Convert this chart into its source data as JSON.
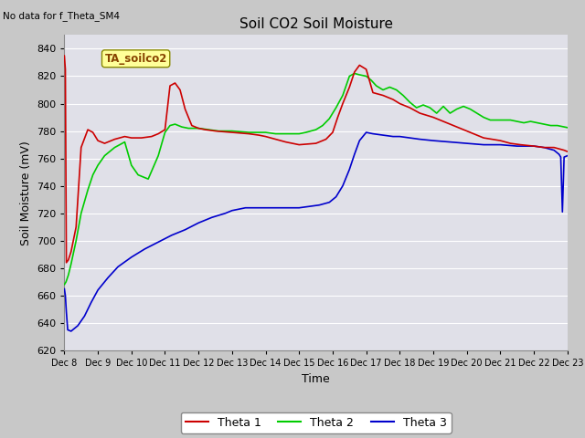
{
  "title": "Soil CO2 Soil Moisture",
  "xlabel": "Time",
  "ylabel": "Soil Moisture (mV)",
  "top_left_text": "No data for f_Theta_SM4",
  "annotation_box": "TA_soilco2",
  "ylim": [
    620,
    850
  ],
  "yticks": [
    620,
    640,
    660,
    680,
    700,
    720,
    740,
    760,
    780,
    800,
    820,
    840
  ],
  "x_labels": [
    "Dec 8",
    "Dec 9",
    "Dec 10",
    "Dec 11",
    "Dec 12",
    "Dec 13",
    "Dec 14",
    "Dec 15",
    "Dec 16",
    "Dec 17",
    "Dec 18",
    "Dec 19",
    "Dec 20",
    "Dec 21",
    "Dec 22",
    "Dec 23"
  ],
  "fig_bg_color": "#c8c8c8",
  "plot_bg_color": "#e0e0e8",
  "grid_color": "#ffffff",
  "theta1_color": "#cc0000",
  "theta2_color": "#00cc00",
  "theta3_color": "#0000cc",
  "legend_labels": [
    "Theta 1",
    "Theta 2",
    "Theta 3"
  ],
  "theta1_x": [
    0.0,
    0.03,
    0.06,
    0.12,
    0.2,
    0.35,
    0.5,
    0.7,
    0.85,
    1.0,
    1.2,
    1.5,
    1.8,
    2.0,
    2.3,
    2.6,
    2.8,
    3.0,
    3.15,
    3.3,
    3.45,
    3.6,
    3.8,
    4.0,
    4.2,
    4.5,
    5.0,
    5.5,
    5.8,
    6.0,
    6.3,
    6.6,
    7.0,
    7.5,
    7.8,
    8.0,
    8.15,
    8.3,
    8.5,
    8.65,
    8.8,
    9.0,
    9.2,
    9.5,
    9.8,
    10.0,
    10.3,
    10.6,
    11.0,
    11.5,
    12.0,
    12.5,
    13.0,
    13.3,
    13.6,
    14.0,
    14.3,
    14.6,
    14.9,
    15.0,
    15.2,
    15.4,
    15.6
  ],
  "theta1_y": [
    835,
    825,
    684,
    686,
    692,
    710,
    768,
    781,
    779,
    773,
    771,
    774,
    776,
    775,
    775,
    776,
    778,
    781,
    813,
    815,
    810,
    796,
    784,
    782,
    781,
    780,
    779,
    778,
    777,
    776,
    774,
    772,
    770,
    771,
    774,
    779,
    790,
    800,
    812,
    823,
    828,
    825,
    808,
    806,
    803,
    800,
    797,
    793,
    790,
    785,
    780,
    775,
    773,
    771,
    770,
    769,
    768,
    768,
    766,
    765,
    768,
    764,
    762
  ],
  "theta2_x": [
    0.0,
    0.05,
    0.12,
    0.2,
    0.35,
    0.5,
    0.7,
    0.85,
    1.0,
    1.2,
    1.5,
    1.8,
    2.0,
    2.2,
    2.5,
    2.8,
    3.0,
    3.15,
    3.3,
    3.5,
    3.7,
    3.9,
    4.0,
    4.3,
    4.6,
    5.0,
    5.5,
    5.8,
    6.0,
    6.3,
    6.6,
    7.0,
    7.2,
    7.5,
    7.7,
    7.9,
    8.1,
    8.3,
    8.5,
    8.65,
    8.8,
    9.0,
    9.15,
    9.3,
    9.5,
    9.7,
    9.9,
    10.1,
    10.3,
    10.5,
    10.7,
    10.9,
    11.1,
    11.3,
    11.5,
    11.7,
    11.9,
    12.1,
    12.3,
    12.5,
    12.7,
    12.9,
    13.1,
    13.3,
    13.5,
    13.7,
    13.9,
    14.1,
    14.3,
    14.5,
    14.7,
    14.9,
    15.1,
    15.3,
    15.5,
    15.6
  ],
  "theta2_y": [
    668,
    670,
    675,
    683,
    700,
    720,
    737,
    748,
    755,
    762,
    768,
    772,
    755,
    748,
    745,
    762,
    779,
    784,
    785,
    783,
    782,
    782,
    782,
    781,
    780,
    780,
    779,
    779,
    779,
    778,
    778,
    778,
    779,
    781,
    784,
    789,
    797,
    806,
    820,
    822,
    821,
    820,
    817,
    813,
    810,
    812,
    810,
    806,
    801,
    797,
    799,
    797,
    793,
    798,
    793,
    796,
    798,
    796,
    793,
    790,
    788,
    788,
    788,
    788,
    787,
    786,
    787,
    786,
    785,
    784,
    784,
    783,
    782,
    785,
    784,
    779
  ],
  "theta3_x": [
    0.0,
    0.03,
    0.06,
    0.1,
    0.2,
    0.4,
    0.6,
    0.8,
    1.0,
    1.3,
    1.6,
    2.0,
    2.4,
    2.8,
    3.2,
    3.6,
    4.0,
    4.4,
    4.8,
    5.0,
    5.2,
    5.4,
    5.6,
    5.8,
    6.0,
    6.3,
    6.6,
    7.0,
    7.3,
    7.6,
    7.9,
    8.1,
    8.3,
    8.5,
    8.65,
    8.8,
    9.0,
    9.2,
    9.5,
    9.8,
    10.0,
    10.3,
    10.6,
    11.0,
    11.5,
    12.0,
    12.5,
    13.0,
    13.5,
    14.0,
    14.3,
    14.6,
    14.75,
    14.8,
    14.85,
    14.9,
    15.0,
    15.2,
    15.4,
    15.6
  ],
  "theta3_y": [
    665,
    660,
    648,
    635,
    634,
    638,
    645,
    655,
    664,
    673,
    681,
    688,
    694,
    699,
    704,
    708,
    713,
    717,
    720,
    722,
    723,
    724,
    724,
    724,
    724,
    724,
    724,
    724,
    725,
    726,
    728,
    732,
    740,
    752,
    763,
    773,
    779,
    778,
    777,
    776,
    776,
    775,
    774,
    773,
    772,
    771,
    770,
    770,
    769,
    769,
    768,
    766,
    763,
    761,
    721,
    761,
    762,
    761,
    760,
    758
  ]
}
